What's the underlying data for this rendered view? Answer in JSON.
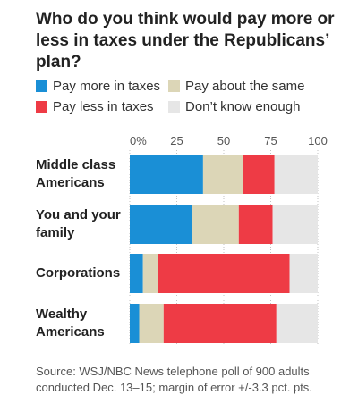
{
  "chart_data": {
    "type": "stacked-bar-horizontal",
    "title": "Who do you think would pay more or less in taxes under the Republicans’ plan?",
    "categories": [
      "Middle class Americans",
      "You and your family",
      "Corporations",
      "Wealthy Americans"
    ],
    "series": [
      {
        "name": "Pay more in taxes",
        "color": "#1a8fd6",
        "values": [
          39,
          33,
          7,
          5
        ]
      },
      {
        "name": "Pay about the same",
        "color": "#dcd6b7",
        "values": [
          21,
          25,
          8,
          13
        ]
      },
      {
        "name": "Pay less in taxes",
        "color": "#ee3b45",
        "values": [
          17,
          18,
          70,
          60
        ]
      },
      {
        "name": "Don’t know enough",
        "color": "#e6e6e6",
        "values": [
          23,
          24,
          15,
          22
        ]
      }
    ],
    "xlim": [
      0,
      100
    ],
    "xticks": [
      {
        "value": 0,
        "label": "0%"
      },
      25,
      50,
      75,
      100
    ],
    "grid": true,
    "source": "Source: WSJ/NBC News telephone poll of 900 adults conducted Dec. 13–15; margin of error +/-3.3 pct. pts."
  }
}
